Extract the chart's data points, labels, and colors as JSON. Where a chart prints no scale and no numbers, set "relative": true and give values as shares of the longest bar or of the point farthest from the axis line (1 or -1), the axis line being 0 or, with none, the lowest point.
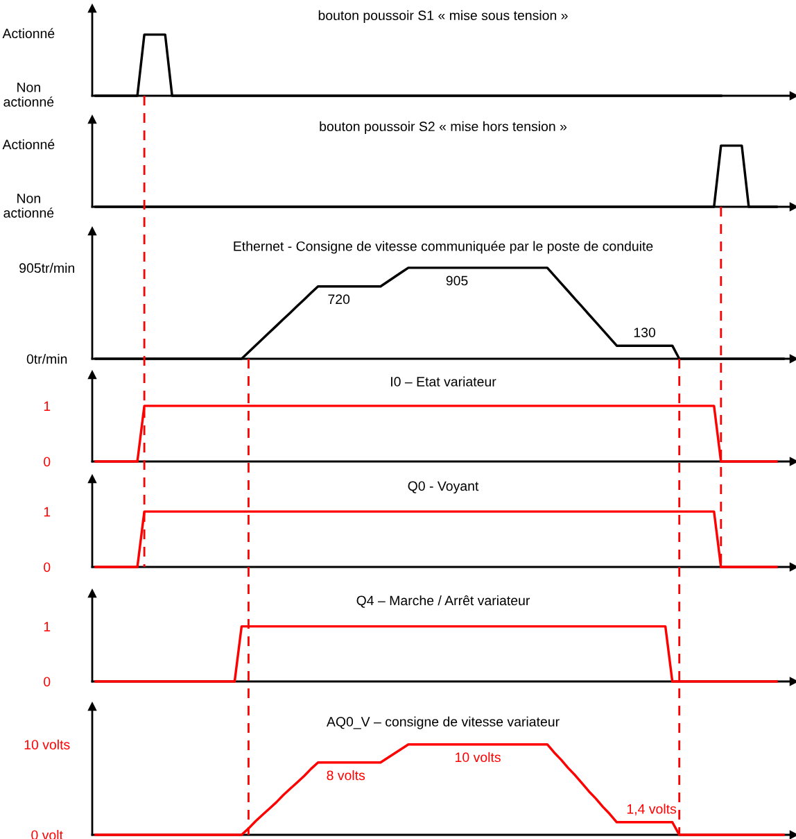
{
  "chart_data": [
    {
      "type": "line",
      "title": "bouton poussoir S1 « mise sous tension »",
      "relative": true,
      "annotations": [
        "Actionné",
        "Non\nactionné"
      ],
      "categories": [
        null,
        null,
        null,
        null,
        null,
        null,
        null,
        null,
        null,
        null,
        null,
        null,
        null,
        null,
        null,
        null,
        null,
        null,
        null,
        null,
        null,
        null,
        null,
        null,
        null,
        null,
        null,
        null,
        null,
        null,
        null,
        null,
        null,
        null,
        null,
        null,
        null,
        null,
        null,
        null,
        null,
        null,
        null,
        null,
        null,
        null,
        null,
        null,
        null,
        null,
        null,
        null,
        null,
        null,
        null,
        null,
        null,
        null,
        null,
        null,
        null,
        null,
        null,
        null,
        null,
        null,
        null,
        null,
        null,
        null,
        null,
        null,
        null,
        null,
        null,
        null,
        null,
        null,
        null,
        null,
        null,
        null,
        null,
        null,
        null,
        null,
        null,
        null,
        null,
        null,
        null,
        null,
        null,
        null,
        null,
        null,
        null,
        null,
        null,
        null
      ],
      "series": [
        {
          "color": "#000000",
          "values": [
            0,
            0,
            0,
            0,
            0,
            0,
            0,
            1,
            1,
            1,
            1,
            0,
            0,
            0,
            0,
            0,
            0,
            0,
            0,
            0,
            0,
            0,
            0,
            0,
            0,
            0,
            0,
            0,
            0,
            0,
            0,
            0,
            0,
            0,
            0,
            0,
            0,
            0,
            0,
            0,
            0,
            0,
            0,
            0,
            0,
            0,
            0,
            0,
            0,
            0,
            0,
            0,
            0,
            0,
            0,
            0,
            0,
            0,
            0,
            0,
            0,
            0,
            0,
            0,
            0,
            0,
            0,
            0,
            0,
            0,
            0,
            0,
            0,
            0,
            0,
            0,
            0,
            0,
            0,
            0,
            0,
            0,
            0,
            0,
            0,
            0,
            0,
            0,
            0,
            0,
            0,
            null,
            null,
            null,
            null,
            null,
            null,
            null,
            null,
            null
          ]
        }
      ],
      "tick_labels": false
    },
    {
      "type": "line",
      "title": "bouton poussoir S2 « mise hors tension »",
      "relative": true,
      "annotations": [
        "Actionné",
        "Non\nactionné"
      ],
      "categories": [
        null,
        null,
        null,
        null,
        null,
        null,
        null,
        null,
        null,
        null,
        null,
        null,
        null,
        null,
        null,
        null,
        null,
        null,
        null,
        null,
        null,
        null,
        null,
        null,
        null,
        null,
        null,
        null,
        null,
        null,
        null,
        null,
        null,
        null,
        null,
        null,
        null,
        null,
        null,
        null,
        null,
        null,
        null,
        null,
        null,
        null,
        null,
        null,
        null,
        null,
        null,
        null,
        null,
        null,
        null,
        null,
        null,
        null,
        null,
        null,
        null,
        null,
        null,
        null,
        null,
        null,
        null,
        null,
        null,
        null,
        null,
        null,
        null,
        null,
        null,
        null,
        null,
        null,
        null,
        null,
        null,
        null,
        null,
        null,
        null,
        null,
        null,
        null,
        null,
        null,
        null,
        null,
        null,
        null,
        null,
        null,
        null,
        null,
        null,
        null
      ],
      "series": [
        {
          "color": "#000000",
          "values": [
            0,
            0,
            0,
            0,
            0,
            0,
            0,
            0,
            0,
            0,
            0,
            0,
            0,
            0,
            0,
            0,
            0,
            0,
            0,
            0,
            0,
            0,
            0,
            0,
            0,
            0,
            0,
            0,
            0,
            0,
            0,
            0,
            0,
            0,
            0,
            0,
            0,
            0,
            0,
            0,
            0,
            0,
            0,
            0,
            0,
            0,
            0,
            0,
            0,
            0,
            0,
            0,
            0,
            0,
            0,
            0,
            0,
            0,
            0,
            0,
            0,
            0,
            0,
            0,
            0,
            0,
            0,
            0,
            0,
            0,
            0,
            0,
            0,
            0,
            0,
            0,
            0,
            0,
            0,
            0,
            0,
            0,
            0,
            0,
            0,
            0,
            0,
            0,
            0,
            0,
            1,
            1,
            1,
            1,
            0,
            0,
            0,
            0,
            0,
            null
          ]
        }
      ],
      "tick_labels": false
    },
    {
      "type": "line",
      "title": "Ethernet - Consigne de vitesse communiquée par le poste de conduite",
      "categories": [
        null,
        null,
        null,
        null,
        null,
        null,
        null,
        null,
        null,
        null,
        null,
        null,
        null,
        null,
        null,
        null,
        null,
        null,
        null,
        null,
        null,
        null,
        null,
        null,
        null,
        null,
        null,
        null,
        null,
        null,
        null,
        null,
        null,
        null,
        null,
        null,
        null,
        null,
        null,
        null,
        null,
        null,
        null,
        null,
        null,
        null,
        null,
        null,
        null,
        null,
        null,
        null,
        null,
        null,
        null,
        null,
        null,
        null,
        null,
        null,
        null,
        null,
        null,
        null,
        null,
        null,
        null,
        null,
        null,
        null,
        null,
        null,
        null,
        null,
        null,
        null,
        null,
        null,
        null,
        null,
        null,
        null,
        null,
        null,
        null,
        null,
        null,
        null,
        null,
        null,
        null,
        null,
        null,
        null,
        null,
        null,
        null,
        null,
        null,
        null
      ],
      "series": [
        {
          "color": "#000000",
          "values": [
            0,
            0,
            0,
            0,
            0,
            0,
            0,
            0,
            0,
            0,
            0,
            0,
            0,
            0,
            0,
            0,
            0,
            0,
            0,
            0,
            0,
            0,
            65,
            131,
            196,
            262,
            327,
            393,
            458,
            524,
            589,
            655,
            720,
            720,
            720,
            720,
            720,
            720,
            720,
            720,
            720,
            720,
            766,
            813,
            859,
            905,
            905,
            905,
            905,
            905,
            905,
            905,
            905,
            905,
            905,
            905,
            905,
            905,
            905,
            905,
            905,
            905,
            905,
            905,
            905,
            905,
            828,
            750,
            673,
            595,
            518,
            440,
            363,
            285,
            208,
            130,
            130,
            130,
            130,
            130,
            130,
            130,
            130,
            130,
            0,
            0,
            0,
            0,
            0,
            0,
            0,
            0,
            0,
            0,
            0,
            0,
            0,
            0,
            0,
            0
          ],
          "value_labels": [
            null,
            null,
            null,
            null,
            null,
            null,
            null,
            null,
            null,
            null,
            null,
            null,
            null,
            null,
            null,
            null,
            null,
            null,
            null,
            null,
            null,
            null,
            null,
            null,
            null,
            null,
            null,
            null,
            null,
            null,
            null,
            null,
            null,
            null,
            null,
            "720",
            null,
            null,
            null,
            null,
            null,
            null,
            null,
            null,
            null,
            null,
            null,
            null,
            null,
            null,
            null,
            null,
            "905",
            null,
            null,
            null,
            null,
            null,
            null,
            null,
            null,
            null,
            null,
            null,
            null,
            null,
            null,
            null,
            null,
            null,
            null,
            null,
            null,
            null,
            null,
            null,
            null,
            null,
            null,
            "130",
            null,
            null,
            null,
            null,
            null,
            null,
            null,
            null,
            null,
            null,
            null,
            null,
            null,
            null,
            null,
            null,
            null,
            null,
            null,
            null
          ]
        }
      ],
      "ylim": [
        0,
        1270
      ],
      "yticks": [
        {
          "value": 0,
          "label": "0tr/min"
        },
        {
          "value": 905,
          "label": "905tr/min"
        }
      ],
      "tick_labels": "y"
    },
    {
      "type": "line",
      "title": "I0 – Etat variateur",
      "categories": [
        null,
        null,
        null,
        null,
        null,
        null,
        null,
        null,
        null,
        null,
        null,
        null,
        null,
        null,
        null,
        null,
        null,
        null,
        null,
        null,
        null,
        null,
        null,
        null,
        null,
        null,
        null,
        null,
        null,
        null,
        null,
        null,
        null,
        null,
        null,
        null,
        null,
        null,
        null,
        null,
        null,
        null,
        null,
        null,
        null,
        null,
        null,
        null,
        null,
        null,
        null,
        null,
        null,
        null,
        null,
        null,
        null,
        null,
        null,
        null,
        null,
        null,
        null,
        null,
        null,
        null,
        null,
        null,
        null,
        null,
        null,
        null,
        null,
        null,
        null,
        null,
        null,
        null,
        null,
        null,
        null,
        null,
        null,
        null,
        null,
        null,
        null,
        null,
        null,
        null,
        null,
        null,
        null,
        null,
        null,
        null,
        null,
        null,
        null,
        null
      ],
      "series": [
        {
          "color": "#ff0000",
          "values": [
            0,
            0,
            0,
            0,
            0,
            0,
            0,
            1,
            1,
            1,
            1,
            1,
            1,
            1,
            1,
            1,
            1,
            1,
            1,
            1,
            1,
            1,
            1,
            1,
            1,
            1,
            1,
            1,
            1,
            1,
            1,
            1,
            1,
            1,
            1,
            1,
            1,
            1,
            1,
            1,
            1,
            1,
            1,
            1,
            1,
            1,
            1,
            1,
            1,
            1,
            1,
            1,
            1,
            1,
            1,
            1,
            1,
            1,
            1,
            1,
            1,
            1,
            1,
            1,
            1,
            1,
            1,
            1,
            1,
            1,
            1,
            1,
            1,
            1,
            1,
            1,
            1,
            1,
            1,
            1,
            1,
            1,
            1,
            1,
            1,
            1,
            1,
            1,
            1,
            1,
            0,
            0,
            0,
            0,
            0,
            0,
            0,
            0,
            0,
            null
          ]
        }
      ],
      "ylim": [
        0,
        1.56
      ],
      "yticks": [
        0,
        1
      ],
      "tick_labels": "y"
    },
    {
      "type": "line",
      "title": "Q0 - Voyant",
      "categories": [
        null,
        null,
        null,
        null,
        null,
        null,
        null,
        null,
        null,
        null,
        null,
        null,
        null,
        null,
        null,
        null,
        null,
        null,
        null,
        null,
        null,
        null,
        null,
        null,
        null,
        null,
        null,
        null,
        null,
        null,
        null,
        null,
        null,
        null,
        null,
        null,
        null,
        null,
        null,
        null,
        null,
        null,
        null,
        null,
        null,
        null,
        null,
        null,
        null,
        null,
        null,
        null,
        null,
        null,
        null,
        null,
        null,
        null,
        null,
        null,
        null,
        null,
        null,
        null,
        null,
        null,
        null,
        null,
        null,
        null,
        null,
        null,
        null,
        null,
        null,
        null,
        null,
        null,
        null,
        null,
        null,
        null,
        null,
        null,
        null,
        null,
        null,
        null,
        null,
        null,
        null,
        null,
        null,
        null,
        null,
        null,
        null,
        null,
        null,
        null
      ],
      "series": [
        {
          "color": "#ff0000",
          "values": [
            0,
            0,
            0,
            0,
            0,
            0,
            0,
            1,
            1,
            1,
            1,
            1,
            1,
            1,
            1,
            1,
            1,
            1,
            1,
            1,
            1,
            1,
            1,
            1,
            1,
            1,
            1,
            1,
            1,
            1,
            1,
            1,
            1,
            1,
            1,
            1,
            1,
            1,
            1,
            1,
            1,
            1,
            1,
            1,
            1,
            1,
            1,
            1,
            1,
            1,
            1,
            1,
            1,
            1,
            1,
            1,
            1,
            1,
            1,
            1,
            1,
            1,
            1,
            1,
            1,
            1,
            1,
            1,
            1,
            1,
            1,
            1,
            1,
            1,
            1,
            1,
            1,
            1,
            1,
            1,
            1,
            1,
            1,
            1,
            1,
            1,
            1,
            1,
            1,
            1,
            0,
            0,
            0,
            0,
            0,
            0,
            0,
            0,
            0,
            null
          ]
        }
      ],
      "ylim": [
        0,
        1.59
      ],
      "yticks": [
        0,
        1
      ],
      "tick_labels": "y"
    },
    {
      "type": "line",
      "title": "Q4 – Marche / Arrêt variateur",
      "categories": [
        null,
        null,
        null,
        null,
        null,
        null,
        null,
        null,
        null,
        null,
        null,
        null,
        null,
        null,
        null,
        null,
        null,
        null,
        null,
        null,
        null,
        null,
        null,
        null,
        null,
        null,
        null,
        null,
        null,
        null,
        null,
        null,
        null,
        null,
        null,
        null,
        null,
        null,
        null,
        null,
        null,
        null,
        null,
        null,
        null,
        null,
        null,
        null,
        null,
        null,
        null,
        null,
        null,
        null,
        null,
        null,
        null,
        null,
        null,
        null,
        null,
        null,
        null,
        null,
        null,
        null,
        null,
        null,
        null,
        null,
        null,
        null,
        null,
        null,
        null,
        null,
        null,
        null,
        null,
        null,
        null,
        null,
        null,
        null,
        null,
        null,
        null,
        null,
        null,
        null,
        null,
        null,
        null,
        null,
        null,
        null,
        null,
        null,
        null,
        null
      ],
      "series": [
        {
          "color": "#ff0000",
          "values": [
            0,
            0,
            0,
            0,
            0,
            0,
            0,
            0,
            0,
            0,
            0,
            0,
            0,
            0,
            0,
            0,
            0,
            0,
            0,
            0,
            0,
            1,
            1,
            1,
            1,
            1,
            1,
            1,
            1,
            1,
            1,
            1,
            1,
            1,
            1,
            1,
            1,
            1,
            1,
            1,
            1,
            1,
            1,
            1,
            1,
            1,
            1,
            1,
            1,
            1,
            1,
            1,
            1,
            1,
            1,
            1,
            1,
            1,
            1,
            1,
            1,
            1,
            1,
            1,
            1,
            1,
            1,
            1,
            1,
            1,
            1,
            1,
            1,
            1,
            1,
            1,
            1,
            1,
            1,
            1,
            1,
            1,
            1,
            0,
            0,
            0,
            0,
            0,
            0,
            0,
            0,
            0,
            0,
            0,
            0,
            0,
            0,
            0,
            0,
            null
          ]
        }
      ],
      "ylim": [
        0,
        1.6
      ],
      "yticks": [
        0,
        1
      ],
      "tick_labels": "y"
    },
    {
      "type": "line",
      "title": "AQ0_V – consigne de vitesse variateur",
      "categories": [
        null,
        null,
        null,
        null,
        null,
        null,
        null,
        null,
        null,
        null,
        null,
        null,
        null,
        null,
        null,
        null,
        null,
        null,
        null,
        null,
        null,
        null,
        null,
        null,
        null,
        null,
        null,
        null,
        null,
        null,
        null,
        null,
        null,
        null,
        null,
        null,
        null,
        null,
        null,
        null,
        null,
        null,
        null,
        null,
        null,
        null,
        null,
        null,
        null,
        null,
        null,
        null,
        null,
        null,
        null,
        null,
        null,
        null,
        null,
        null,
        null,
        null,
        null,
        null,
        null,
        null,
        null,
        null,
        null,
        null,
        null,
        null,
        null,
        null,
        null,
        null,
        null,
        null,
        null,
        null,
        null,
        null,
        null,
        null,
        null,
        null,
        null,
        null,
        null,
        null,
        null,
        null,
        null,
        null,
        null,
        null,
        null,
        null,
        null,
        null
      ],
      "series": [
        {
          "color": "#ff0000",
          "values": [
            0,
            0,
            0,
            0,
            0,
            0,
            0,
            0,
            0,
            0,
            0,
            0,
            0,
            0,
            0,
            0,
            0,
            0,
            0,
            0,
            0,
            0,
            0.7,
            1.5,
            2.2,
            2.9,
            3.6,
            4.4,
            5.1,
            5.8,
            6.5,
            7.3,
            8,
            8,
            8,
            8,
            8,
            8,
            8,
            8,
            8,
            8,
            8.5,
            9,
            9.5,
            10,
            10,
            10,
            10,
            10,
            10,
            10,
            10,
            10,
            10,
            10,
            10,
            10,
            10,
            10,
            10,
            10,
            10,
            10,
            10,
            10,
            9.1,
            8.3,
            7.4,
            6.6,
            5.7,
            4.8,
            4.0,
            3.1,
            2.3,
            1.4,
            1.4,
            1.4,
            1.4,
            1.4,
            1.4,
            1.4,
            1.4,
            1.4,
            0,
            0,
            0,
            0,
            0,
            0,
            0,
            0,
            0,
            0,
            0,
            0,
            0,
            0,
            0,
            0
          ],
          "value_labels": [
            null,
            null,
            null,
            null,
            null,
            null,
            null,
            null,
            null,
            null,
            null,
            null,
            null,
            null,
            null,
            null,
            null,
            null,
            null,
            null,
            null,
            null,
            null,
            null,
            null,
            null,
            null,
            null,
            null,
            null,
            null,
            null,
            null,
            null,
            null,
            null,
            "8 volts",
            null,
            null,
            null,
            null,
            null,
            null,
            null,
            null,
            null,
            null,
            null,
            null,
            null,
            null,
            null,
            null,
            null,
            null,
            "10 volts",
            null,
            null,
            null,
            null,
            null,
            null,
            null,
            null,
            null,
            null,
            null,
            null,
            null,
            null,
            null,
            null,
            null,
            null,
            null,
            null,
            null,
            null,
            null,
            null,
            "1,4 volts",
            null,
            null,
            null,
            null,
            null,
            null,
            null,
            null,
            null,
            null,
            null,
            null,
            null,
            null,
            null,
            null,
            null,
            null,
            null
          ]
        }
      ],
      "ylim": [
        0,
        14.2
      ],
      "yticks": [
        {
          "value": 0,
          "label": "0 volt"
        },
        {
          "value": 10,
          "label": "10 volts"
        }
      ],
      "tick_labels": "y"
    }
  ]
}
